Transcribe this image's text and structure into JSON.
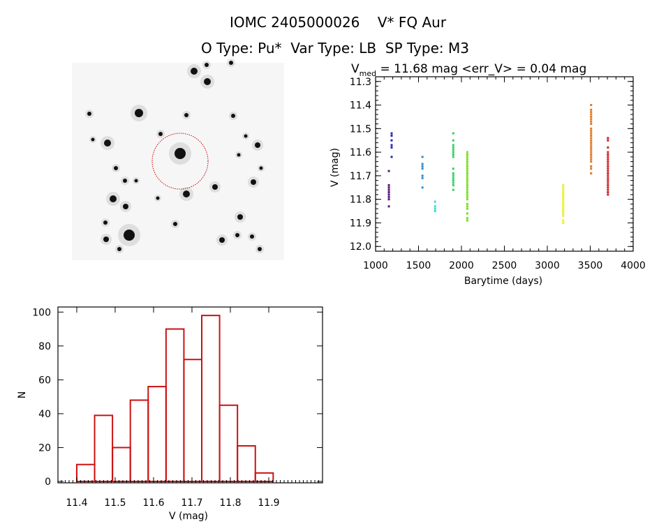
{
  "header": {
    "title": "IOMC 2405000026    V* FQ Aur",
    "subtitle": "O Type: Pu*  Var Type: LB  SP Type: M3"
  },
  "image_panel": {
    "target_marker_color": "#cc0000"
  },
  "chart_data": [
    {
      "type": "scatter",
      "title_prefix": "V",
      "title_sub": "med",
      "title_rest": " = 11.68 mag <err_V> = 0.04 mag",
      "xlabel": "Barytime (days)",
      "ylabel": "V (mag)",
      "xlim": [
        1000,
        4000
      ],
      "ylim": [
        12.02,
        11.28
      ],
      "yreversed": true,
      "xticks": [
        "1000",
        "1500",
        "2000",
        "2500",
        "3000",
        "3500",
        "4000"
      ],
      "yticks": [
        "11.3",
        "11.4",
        "11.5",
        "11.6",
        "11.7",
        "11.8",
        "11.9",
        "12.0"
      ],
      "series": [
        {
          "x": 1155,
          "color": "#5a167a",
          "y": [
            11.68,
            11.74,
            11.75,
            11.76,
            11.77,
            11.78,
            11.79,
            11.8,
            11.83
          ]
        },
        {
          "x": 1187,
          "color": "#2424b8",
          "y": [
            11.52,
            11.53,
            11.55,
            11.57,
            11.58,
            11.62
          ]
        },
        {
          "x": 1546,
          "color": "#2f8ccf",
          "y": [
            11.62,
            11.65,
            11.66,
            11.67,
            11.7,
            11.71,
            11.75
          ]
        },
        {
          "x": 1693,
          "color": "#3fdcc8",
          "y": [
            11.81,
            11.83,
            11.84,
            11.85
          ]
        },
        {
          "x": 1905,
          "color": "#2fd064",
          "y": [
            11.52,
            11.55,
            11.57,
            11.58,
            11.59,
            11.6,
            11.61,
            11.62,
            11.67,
            11.69,
            11.7,
            11.71,
            11.72,
            11.73,
            11.74,
            11.76
          ]
        },
        {
          "x": 2068,
          "color": "#74e020",
          "y": [
            11.6,
            11.61,
            11.62,
            11.63,
            11.64,
            11.65,
            11.66,
            11.67,
            11.68,
            11.69,
            11.7,
            11.71,
            11.72,
            11.73,
            11.74,
            11.75,
            11.76,
            11.77,
            11.78,
            11.79,
            11.8,
            11.82,
            11.83,
            11.84,
            11.86,
            11.88,
            11.89
          ]
        },
        {
          "x": 3185,
          "color": "#eeee22",
          "y": [
            11.74,
            11.75,
            11.76,
            11.77,
            11.78,
            11.79,
            11.8,
            11.81,
            11.82,
            11.83,
            11.84,
            11.85,
            11.86,
            11.87,
            11.89,
            11.9
          ]
        },
        {
          "x": 3510,
          "color": "#e07a22",
          "y": [
            11.4,
            11.42,
            11.43,
            11.44,
            11.45,
            11.46,
            11.47,
            11.48,
            11.5,
            11.51,
            11.52,
            11.53,
            11.54,
            11.55,
            11.56,
            11.57,
            11.58,
            11.59,
            11.6,
            11.61,
            11.62,
            11.63,
            11.64,
            11.66,
            11.67,
            11.69
          ]
        },
        {
          "x": 3706,
          "color": "#d02222",
          "y": [
            11.54,
            11.55,
            11.58,
            11.6,
            11.61,
            11.62,
            11.63,
            11.64,
            11.65,
            11.66,
            11.67,
            11.68,
            11.69,
            11.7,
            11.71,
            11.72,
            11.73,
            11.74,
            11.75,
            11.76,
            11.77,
            11.78
          ]
        }
      ]
    },
    {
      "type": "bar",
      "subtype": "histogram",
      "xlabel": "V (mag)",
      "ylabel": "N",
      "bin_start": 11.4,
      "bin_width": 0.0465,
      "values": [
        10,
        39,
        20,
        48,
        56,
        90,
        72,
        98,
        45,
        21,
        5
      ],
      "xlim": [
        11.351,
        12.04
      ],
      "ylim": [
        0,
        103
      ],
      "xticks": [
        "11.4",
        "11.5",
        "11.6",
        "11.7",
        "11.8",
        "11.9"
      ],
      "yticks": [
        "0",
        "20",
        "40",
        "60",
        "80",
        "100"
      ],
      "bar_color": "#cc1111"
    }
  ]
}
